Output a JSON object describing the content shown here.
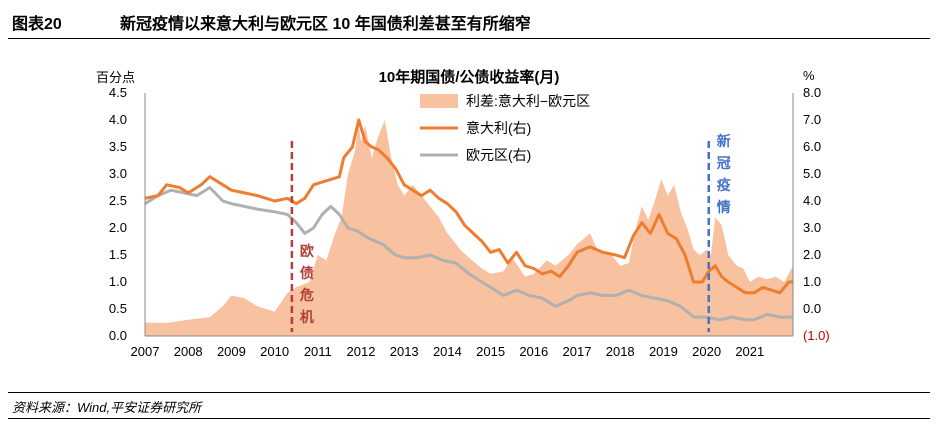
{
  "header": {
    "figure_label": "图表20",
    "figure_title": "新冠疫情以来意大利与欧元区 10 年国债利差甚至有所缩窄"
  },
  "footer": {
    "source": "资料来源：Wind,平安证券研究所"
  },
  "chart_data": {
    "type": "area",
    "title": "10年期国债/公债收益率(月)",
    "left_unit": "百分点",
    "right_unit": "%",
    "x_ticks": [
      "2007",
      "2008",
      "2009",
      "2010",
      "2011",
      "2012",
      "2013",
      "2014",
      "2015",
      "2016",
      "2017",
      "2018",
      "2019",
      "2020",
      "2021"
    ],
    "x_range": [
      2007.0,
      2022.0
    ],
    "y_left": {
      "range": [
        0,
        4.5
      ],
      "ticks": [
        "0.0",
        "0.5",
        "1.0",
        "1.5",
        "2.0",
        "2.5",
        "3.0",
        "3.5",
        "4.0",
        "4.5"
      ]
    },
    "y_right": {
      "range": [
        -1,
        8
      ],
      "ticks": [
        "(1.0)",
        "0.0",
        "1.0",
        "2.0",
        "3.0",
        "4.0",
        "5.0",
        "6.0",
        "7.0",
        "8.0"
      ]
    },
    "legend": [
      "利差:意大利−欧元区",
      "意大利(右)",
      "欧元区(右)"
    ],
    "legend_position": "top-center",
    "colors": {
      "spread": "#f8c1a0",
      "italy": "#ed7d31",
      "euro": "#b0b0b0",
      "event1": "#b0403a",
      "event2": "#4472c4",
      "neg_tick": "#c00000"
    },
    "annotations": [
      {
        "x": 2010.4,
        "label": "欧债危机",
        "color": "#b0403a",
        "dash": true
      },
      {
        "x": 2020.05,
        "label": "新冠疫情",
        "color": "#4472c4",
        "dash": true
      }
    ],
    "series": [
      {
        "name": "利差:意大利−欧元区",
        "axis": "left",
        "x": [
          2007.0,
          2007.5,
          2008.0,
          2008.5,
          2008.8,
          2009.0,
          2009.3,
          2009.6,
          2010.0,
          2010.3,
          2010.5,
          2010.8,
          2011.0,
          2011.2,
          2011.4,
          2011.55,
          2011.7,
          2011.85,
          2011.95,
          2012.0,
          2012.1,
          2012.25,
          2012.4,
          2012.55,
          2012.7,
          2012.85,
          2013.0,
          2013.2,
          2013.4,
          2013.6,
          2013.8,
          2014.0,
          2014.3,
          2014.5,
          2014.8,
          2015.0,
          2015.3,
          2015.5,
          2015.8,
          2016.0,
          2016.3,
          2016.5,
          2016.8,
          2017.0,
          2017.3,
          2017.5,
          2017.8,
          2018.0,
          2018.2,
          2018.35,
          2018.5,
          2018.65,
          2018.8,
          2018.95,
          2019.1,
          2019.25,
          2019.4,
          2019.55,
          2019.7,
          2019.85,
          2020.0,
          2020.1,
          2020.2,
          2020.35,
          2020.5,
          2020.7,
          2020.85,
          2021.0,
          2021.2,
          2021.4,
          2021.6,
          2021.8,
          2022.0
        ],
        "values": [
          0.25,
          0.24,
          0.3,
          0.35,
          0.55,
          0.75,
          0.7,
          0.55,
          0.45,
          0.8,
          0.9,
          1.0,
          1.5,
          1.4,
          1.9,
          2.2,
          3.0,
          3.4,
          3.9,
          3.6,
          3.9,
          3.3,
          3.7,
          4.0,
          3.3,
          2.8,
          2.6,
          2.8,
          2.6,
          2.4,
          2.2,
          1.9,
          1.6,
          1.45,
          1.25,
          1.15,
          1.2,
          1.45,
          1.1,
          1.15,
          1.4,
          1.3,
          1.5,
          1.7,
          1.9,
          1.55,
          1.5,
          1.3,
          1.35,
          1.95,
          2.4,
          2.15,
          2.5,
          2.9,
          2.6,
          2.8,
          2.3,
          2.0,
          1.6,
          1.5,
          1.6,
          1.5,
          2.2,
          2.05,
          1.5,
          1.3,
          1.25,
          1.0,
          1.1,
          1.05,
          1.1,
          1.0,
          1.3
        ]
      },
      {
        "name": "意大利(右)",
        "axis": "right",
        "x": [
          2007.0,
          2007.3,
          2007.5,
          2007.8,
          2008.0,
          2008.3,
          2008.5,
          2008.8,
          2009.0,
          2009.3,
          2009.6,
          2010.0,
          2010.3,
          2010.5,
          2010.7,
          2010.9,
          2011.1,
          2011.3,
          2011.5,
          2011.6,
          2011.7,
          2011.8,
          2011.95,
          2012.1,
          2012.25,
          2012.4,
          2012.6,
          2012.8,
          2013.0,
          2013.2,
          2013.4,
          2013.6,
          2013.8,
          2014.0,
          2014.2,
          2014.4,
          2014.6,
          2014.8,
          2015.0,
          2015.2,
          2015.4,
          2015.6,
          2015.8,
          2016.0,
          2016.2,
          2016.4,
          2016.6,
          2016.8,
          2017.0,
          2017.3,
          2017.6,
          2017.9,
          2018.1,
          2018.3,
          2018.5,
          2018.7,
          2018.9,
          2019.1,
          2019.3,
          2019.5,
          2019.7,
          2019.9,
          2020.05,
          2020.2,
          2020.35,
          2020.5,
          2020.7,
          2020.9,
          2021.1,
          2021.3,
          2021.5,
          2021.7,
          2021.9,
          2022.0
        ],
        "values": [
          4.1,
          4.2,
          4.6,
          4.5,
          4.3,
          4.6,
          4.9,
          4.6,
          4.4,
          4.3,
          4.2,
          4.0,
          4.1,
          3.9,
          4.1,
          4.6,
          4.7,
          4.8,
          4.9,
          5.6,
          5.8,
          6.0,
          7.0,
          6.2,
          6.0,
          5.9,
          5.6,
          5.2,
          4.6,
          4.4,
          4.2,
          4.4,
          4.1,
          3.9,
          3.6,
          3.1,
          2.8,
          2.5,
          2.1,
          2.2,
          1.7,
          2.1,
          1.6,
          1.5,
          1.3,
          1.4,
          1.2,
          1.6,
          2.1,
          2.3,
          2.1,
          2.0,
          1.9,
          2.7,
          3.2,
          2.8,
          3.5,
          2.8,
          2.6,
          2.0,
          1.0,
          1.0,
          1.4,
          1.6,
          1.2,
          1.0,
          0.8,
          0.6,
          0.6,
          0.8,
          0.7,
          0.6,
          1.0,
          1.0
        ]
      },
      {
        "name": "欧元区(右)",
        "axis": "right",
        "x": [
          2007.0,
          2007.3,
          2007.6,
          2007.9,
          2008.2,
          2008.5,
          2008.8,
          2009.0,
          2009.3,
          2009.6,
          2010.0,
          2010.3,
          2010.5,
          2010.7,
          2010.9,
          2011.1,
          2011.3,
          2011.5,
          2011.7,
          2011.9,
          2012.2,
          2012.5,
          2012.8,
          2013.0,
          2013.3,
          2013.6,
          2013.9,
          2014.2,
          2014.5,
          2014.8,
          2015.0,
          2015.3,
          2015.6,
          2015.9,
          2016.2,
          2016.5,
          2016.8,
          2017.0,
          2017.3,
          2017.6,
          2017.9,
          2018.2,
          2018.5,
          2018.8,
          2019.1,
          2019.4,
          2019.7,
          2020.0,
          2020.3,
          2020.6,
          2020.9,
          2021.1,
          2021.4,
          2021.7,
          2022.0
        ],
        "values": [
          3.9,
          4.2,
          4.4,
          4.3,
          4.2,
          4.5,
          4.0,
          3.9,
          3.8,
          3.7,
          3.6,
          3.5,
          3.2,
          2.8,
          3.0,
          3.5,
          3.8,
          3.5,
          3.0,
          2.9,
          2.6,
          2.4,
          2.0,
          1.9,
          1.9,
          2.0,
          1.8,
          1.7,
          1.3,
          1.0,
          0.8,
          0.5,
          0.7,
          0.5,
          0.4,
          0.1,
          0.3,
          0.5,
          0.6,
          0.5,
          0.5,
          0.7,
          0.5,
          0.4,
          0.3,
          0.1,
          -0.3,
          -0.3,
          -0.4,
          -0.3,
          -0.4,
          -0.4,
          -0.2,
          -0.3,
          -0.3
        ]
      }
    ]
  }
}
